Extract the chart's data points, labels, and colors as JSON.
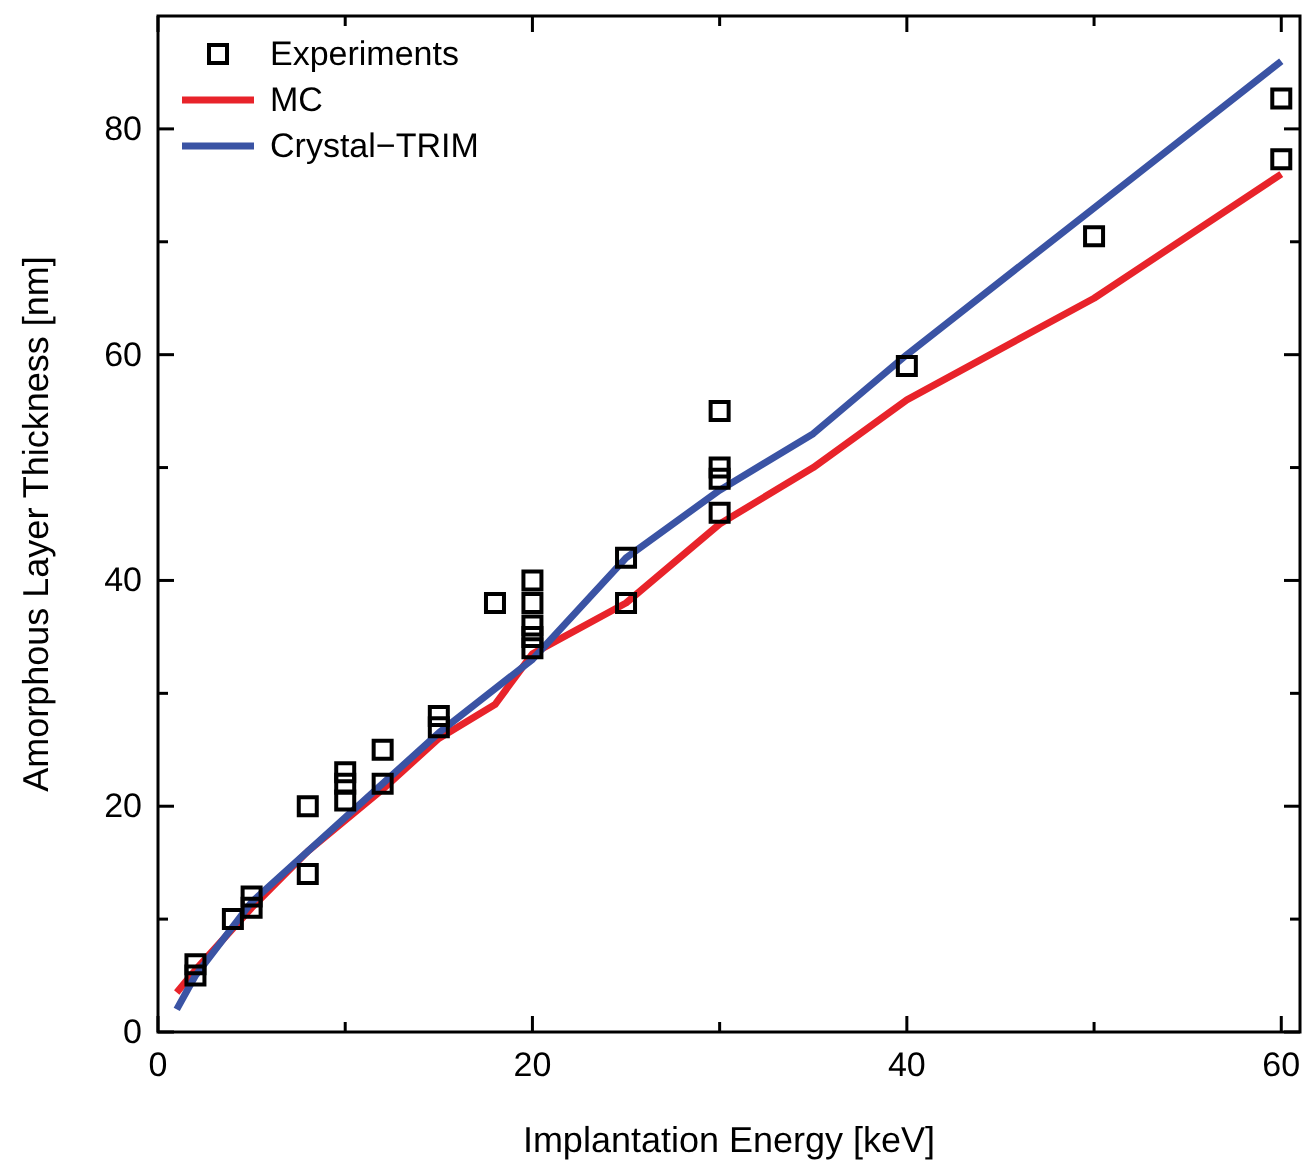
{
  "chart_data": {
    "type": "line",
    "xlabel": "Implantation Energy [keV]",
    "ylabel": "Amorphous Layer Thickness [nm]",
    "xlim": [
      0,
      61
    ],
    "ylim": [
      0,
      90
    ],
    "xticks": [
      0,
      {
        "value": 10,
        "label": null
      },
      20,
      {
        "value": 30,
        "label": null
      },
      40,
      {
        "value": 50,
        "label": null
      },
      60
    ],
    "yticks": [
      0,
      {
        "value": 10,
        "label": null
      },
      20,
      {
        "value": 30,
        "label": null
      },
      40,
      {
        "value": 50,
        "label": null
      },
      60,
      {
        "value": 70,
        "label": null
      },
      80
    ],
    "legend": "top left",
    "grid": false,
    "series": [
      {
        "name": "Experiments",
        "type": "scatter",
        "marker": "square",
        "color": "#000000",
        "x": [
          2,
          2,
          4,
          5,
          5,
          8,
          8,
          10,
          10,
          10,
          12,
          12,
          15,
          15,
          18,
          20,
          20,
          20,
          20,
          20,
          25,
          25,
          30,
          30,
          30,
          30,
          40,
          50,
          60,
          60
        ],
        "values": [
          6,
          5,
          10,
          11,
          12,
          20,
          14,
          23,
          22,
          20.5,
          25,
          22,
          28,
          27,
          38,
          40,
          38,
          36,
          35,
          34,
          42,
          38,
          55,
          50,
          49,
          46,
          59,
          70.5,
          82.7,
          77.3
        ]
      },
      {
        "name": "MC",
        "marker": "none",
        "line_style": "solid",
        "color": "#e8232a",
        "x": [
          1,
          2,
          5,
          8,
          12,
          15,
          18,
          20,
          25,
          30,
          35,
          40,
          50,
          60
        ],
        "values": [
          3.5,
          5.5,
          11,
          16,
          21.5,
          26,
          29,
          33.5,
          38,
          45,
          50,
          56,
          65,
          76
        ]
      },
      {
        "name": "Crystal−TRIM",
        "marker": "none",
        "line_style": "solid",
        "color": "#3a53a4",
        "x": [
          1,
          2,
          5,
          8,
          12,
          15,
          20,
          25,
          30,
          35,
          40,
          50,
          60
        ],
        "values": [
          2,
          5,
          11.5,
          16,
          22,
          26.5,
          33,
          42,
          48,
          53,
          60,
          73,
          86
        ]
      }
    ]
  }
}
